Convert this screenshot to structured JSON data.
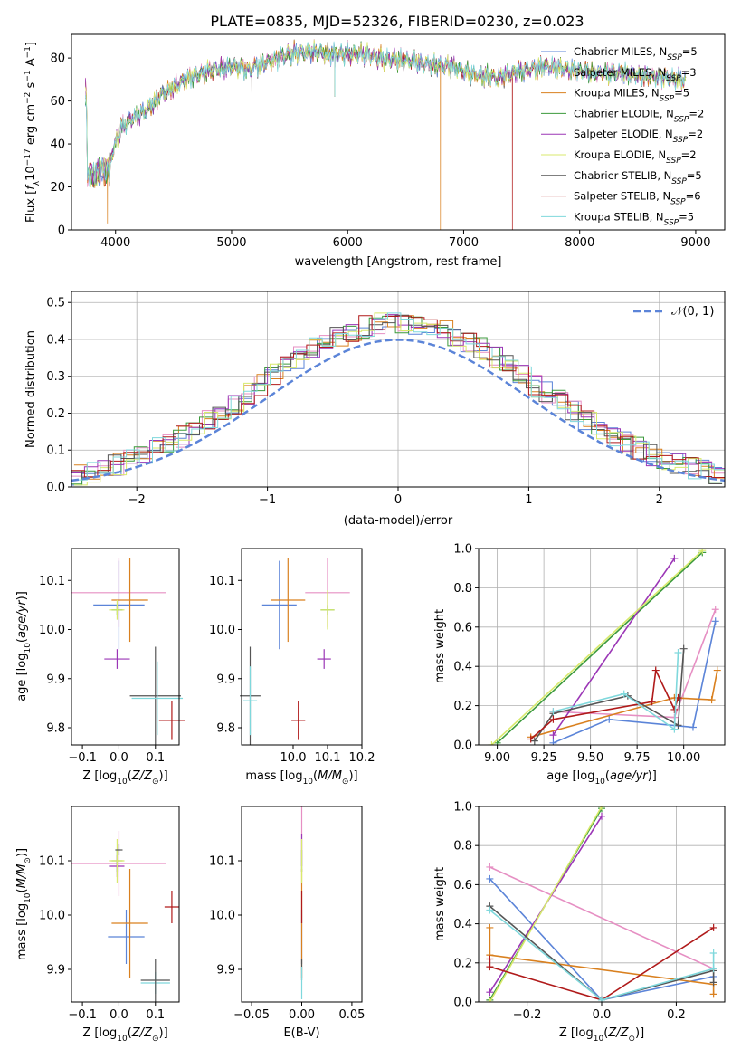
{
  "figure_title": "PLATE=0835, MJD=52326, FIBERID=0230, z=0.023",
  "colors": {
    "Chabrier MILES": "#5b84d8",
    "Salpeter MILES": "#e68fc3",
    "Kroupa MILES": "#d9801f",
    "Chabrier ELODIE": "#3c9a3c",
    "Salpeter ELODIE": "#9b36b6",
    "Kroupa ELODIE": "#d8ea6c",
    "Chabrier STELIB": "#555555",
    "Salpeter STELIB": "#b01a1a",
    "Kroupa STELIB": "#7fd8dc"
  },
  "chart_data": [
    {
      "id": "spectrum",
      "type": "line",
      "xlabel": "wavelength [Angstrom, rest frame]",
      "ylabel": "Flux [f_λ10^-17 erg cm^-2 s^-1 A^-1]",
      "xlim": [
        3620,
        9250
      ],
      "ylim": [
        0,
        91
      ],
      "xticks": [
        4000,
        5000,
        6000,
        7000,
        8000,
        9000
      ],
      "yticks": [
        0,
        20,
        40,
        60,
        80
      ],
      "legend_position": "upper right",
      "legend": [
        {
          "model": "Chabrier MILES",
          "label": "Chabrier MILES, N",
          "sub": "SSP",
          "eq": "=5"
        },
        {
          "model": "Salpeter MILES",
          "label": "Salpeter MILES, N",
          "sub": "SSP",
          "eq": "=3"
        },
        {
          "model": "Kroupa MILES",
          "label": "Kroupa MILES, N",
          "sub": "SSP",
          "eq": "=5"
        },
        {
          "model": "Chabrier ELODIE",
          "label": "Chabrier ELODIE, N",
          "sub": "SSP",
          "eq": "=2"
        },
        {
          "model": "Salpeter ELODIE",
          "label": "Salpeter ELODIE, N",
          "sub": "SSP",
          "eq": "=2"
        },
        {
          "model": "Kroupa ELODIE",
          "label": "Kroupa ELODIE, N",
          "sub": "SSP",
          "eq": "=2"
        },
        {
          "model": "Chabrier STELIB",
          "label": "Chabrier STELIB, N",
          "sub": "SSP",
          "eq": "=5"
        },
        {
          "model": "Salpeter STELIB",
          "label": "Salpeter STELIB, N",
          "sub": "SSP",
          "eq": "=6"
        },
        {
          "model": "Kroupa STELIB",
          "label": "Kroupa STELIB, N",
          "sub": "SSP",
          "eq": "=5"
        }
      ],
      "continuum": {
        "x": [
          3750,
          3850,
          3950,
          4050,
          4150,
          4250,
          4400,
          4600,
          4800,
          5000,
          5150,
          5300,
          5500,
          5700,
          5900,
          6100,
          6300,
          6500,
          6700,
          6900,
          7100,
          7300,
          7500,
          7700,
          7900,
          8100,
          8300,
          8500,
          8700,
          8900
        ],
        "y": [
          30,
          33,
          33,
          48,
          52,
          55,
          63,
          70,
          74,
          76,
          75,
          78,
          82,
          83,
          82,
          82,
          80,
          79,
          77,
          76,
          72,
          71,
          74,
          76,
          75,
          73,
          73,
          72,
          71,
          70
        ]
      },
      "dips": [
        {
          "x": 3930,
          "y": 3
        },
        {
          "x": 5175,
          "y": 52
        },
        {
          "x": 5890,
          "y": 62
        },
        {
          "x": 6800,
          "y": 0
        },
        {
          "x": 7420,
          "y": 0
        }
      ]
    },
    {
      "id": "residuals",
      "type": "histogram",
      "xlabel": "(data-model)/error",
      "ylabel": "Normed distribution",
      "xlim": [
        -2.5,
        2.5
      ],
      "ylim": [
        0,
        0.53
      ],
      "xticks": [
        -2,
        -1,
        0,
        1,
        2
      ],
      "yticks": [
        0.0,
        0.1,
        0.2,
        0.3,
        0.4,
        0.5
      ],
      "grid": true,
      "bin_edges_start": -2.5,
      "bin_width": 0.1,
      "reference_curve": "N(0,1)",
      "legend": "𝒩(0, 1)"
    },
    {
      "id": "age-vs-Z",
      "type": "errorbar",
      "xlabel": "Z [log₁₀(Z/Z⊙)]",
      "ylabel": "age  [log₁₀(age/yr)]",
      "xlim": [
        -0.13,
        0.165
      ],
      "ylim": [
        9.765,
        10.165
      ],
      "xticks": [
        -0.1,
        0.0,
        0.1
      ],
      "yticks": [
        9.8,
        9.9,
        10.0,
        10.1
      ],
      "points": [
        {
          "model": "Chabrier MILES",
          "x": 0.0,
          "xerr": 0.07,
          "y": 10.05,
          "yerr": 0.09
        },
        {
          "model": "Salpeter MILES",
          "x": 0.0,
          "xerr": 0.13,
          "y": 10.075,
          "yerr": 0.07
        },
        {
          "model": "Kroupa MILES",
          "x": 0.03,
          "xerr": 0.05,
          "y": 10.06,
          "yerr": 0.085
        },
        {
          "model": "Chabrier ELODIE",
          "x": -0.005,
          "xerr": 0.015,
          "y": 10.04,
          "yerr": 0.01
        },
        {
          "model": "Salpeter ELODIE",
          "x": -0.005,
          "xerr": 0.035,
          "y": 9.94,
          "yerr": 0.02
        },
        {
          "model": "Kroupa ELODIE",
          "x": -0.005,
          "xerr": 0.02,
          "y": 10.04,
          "yerr": 0.02
        },
        {
          "model": "Chabrier STELIB",
          "x": 0.1,
          "xerr": 0.07,
          "y": 9.865,
          "yerr": 0.1
        },
        {
          "model": "Salpeter STELIB",
          "x": 0.145,
          "xerr": 0.035,
          "y": 9.815,
          "yerr": 0.04
        },
        {
          "model": "Kroupa STELIB",
          "x": 0.105,
          "xerr": 0.07,
          "y": 9.86,
          "yerr": 0.075
        }
      ]
    },
    {
      "id": "age-vs-mass",
      "type": "errorbar",
      "xlabel": "mass [log₁₀(M/M⊙)]",
      "xlim": [
        9.85,
        10.2
      ],
      "ylim": [
        9.765,
        10.165
      ],
      "xticks": [
        10.0,
        10.1,
        10.2
      ],
      "yticks": [
        9.8,
        9.9,
        10.0,
        10.1
      ],
      "points": [
        {
          "model": "Chabrier MILES",
          "x": 9.96,
          "xerr": 0.05,
          "y": 10.05,
          "yerr": 0.09
        },
        {
          "model": "Salpeter MILES",
          "x": 10.1,
          "xerr": 0.065,
          "y": 10.075,
          "yerr": 0.07
        },
        {
          "model": "Kroupa MILES",
          "x": 9.985,
          "xerr": 0.05,
          "y": 10.06,
          "yerr": 0.085
        },
        {
          "model": "Chabrier ELODIE",
          "x": 10.1,
          "xerr": 0.02,
          "y": 10.04,
          "yerr": 0.01
        },
        {
          "model": "Salpeter ELODIE",
          "x": 10.09,
          "xerr": 0.02,
          "y": 9.94,
          "yerr": 0.02
        },
        {
          "model": "Kroupa ELODIE",
          "x": 10.1,
          "xerr": 0.02,
          "y": 10.04,
          "yerr": 0.04
        },
        {
          "model": "Chabrier STELIB",
          "x": 9.875,
          "xerr": 0.03,
          "y": 9.865,
          "yerr": 0.1
        },
        {
          "model": "Salpeter STELIB",
          "x": 10.015,
          "xerr": 0.02,
          "y": 9.815,
          "yerr": 0.04
        },
        {
          "model": "Kroupa STELIB",
          "x": 9.875,
          "xerr": 0.02,
          "y": 9.855,
          "yerr": 0.07
        }
      ]
    },
    {
      "id": "weight-vs-age",
      "type": "line",
      "xlabel": "age  [log₁₀(age/yr)]",
      "ylabel": "mass weight",
      "xlim": [
        8.9,
        10.22
      ],
      "ylim": [
        0,
        1
      ],
      "xticks": [
        9.0,
        9.25,
        9.5,
        9.75,
        10.0
      ],
      "yticks": [
        0.0,
        0.2,
        0.4,
        0.6,
        0.8,
        1.0
      ],
      "grid": true,
      "series": [
        {
          "model": "Chabrier MILES",
          "x": [
            9.3,
            9.6,
            10.05,
            10.17
          ],
          "y": [
            0.01,
            0.13,
            0.09,
            0.63
          ]
        },
        {
          "model": "Salpeter MILES",
          "x": [
            9.3,
            9.95,
            10.17
          ],
          "y": [
            0.17,
            0.14,
            0.69
          ]
        },
        {
          "model": "Kroupa MILES",
          "x": [
            9.18,
            9.95,
            10.15,
            10.18
          ],
          "y": [
            0.04,
            0.24,
            0.23,
            0.38
          ]
        },
        {
          "model": "Chabrier ELODIE",
          "x": [
            9.0,
            10.1
          ],
          "y": [
            0.01,
            0.98
          ]
        },
        {
          "model": "Salpeter ELODIE",
          "x": [
            9.3,
            9.95
          ],
          "y": [
            0.05,
            0.95
          ]
        },
        {
          "model": "Kroupa ELODIE",
          "x": [
            8.97,
            10.1
          ],
          "y": [
            0.0,
            0.99
          ]
        },
        {
          "model": "Chabrier STELIB",
          "x": [
            9.2,
            9.3,
            9.7,
            9.97,
            10.0
          ],
          "y": [
            0.02,
            0.16,
            0.25,
            0.1,
            0.49
          ]
        },
        {
          "model": "Salpeter STELIB",
          "x": [
            9.18,
            9.3,
            9.83,
            9.85,
            9.95,
            9.97
          ],
          "y": [
            0.03,
            0.13,
            0.22,
            0.38,
            0.18,
            0.24
          ]
        },
        {
          "model": "Kroupa STELIB",
          "x": [
            9.3,
            9.68,
            9.95,
            9.97
          ],
          "y": [
            0.17,
            0.26,
            0.08,
            0.47
          ]
        }
      ]
    },
    {
      "id": "mass-vs-Z",
      "type": "errorbar",
      "xlabel": "Z [log₁₀(Z/Z⊙)]",
      "ylabel": "mass [log₁₀(M/M⊙)]",
      "xlim": [
        -0.13,
        0.165
      ],
      "ylim": [
        9.84,
        10.2
      ],
      "xticks": [
        -0.1,
        0.0,
        0.1
      ],
      "yticks": [
        9.9,
        10.0,
        10.1
      ],
      "points": [
        {
          "model": "Chabrier MILES",
          "x": 0.02,
          "xerr": 0.05,
          "y": 9.96,
          "yerr": 0.05
        },
        {
          "model": "Salpeter MILES",
          "x": 0.0,
          "xerr": 0.13,
          "y": 10.095,
          "yerr": 0.06
        },
        {
          "model": "Kroupa MILES",
          "x": 0.03,
          "xerr": 0.05,
          "y": 9.985,
          "yerr": 0.1
        },
        {
          "model": "Chabrier ELODIE",
          "x": -0.005,
          "xerr": 0.015,
          "y": 10.1,
          "yerr": 0.02
        },
        {
          "model": "Salpeter ELODIE",
          "x": -0.005,
          "xerr": 0.02,
          "y": 10.09,
          "yerr": 0.02
        },
        {
          "model": "Kroupa ELODIE",
          "x": -0.005,
          "xerr": 0.02,
          "y": 10.1,
          "yerr": 0.04
        },
        {
          "model": "Chabrier STELIB",
          "x": 0.0,
          "xerr": 0.01,
          "y": 10.12,
          "yerr": 0.01
        },
        {
          "model": "Salpeter STELIB",
          "x": 0.145,
          "xerr": 0.02,
          "y": 10.015,
          "yerr": 0.03
        },
        {
          "model": "Kroupa STELIB",
          "x": 0.1,
          "xerr": 0.04,
          "y": 9.875,
          "yerr": 0.02
        },
        {
          "model": "Chabrier STELIB",
          "x": 0.1,
          "xerr": 0.04,
          "y": 9.88,
          "yerr": 0.04
        }
      ]
    },
    {
      "id": "mass-vs-ebv",
      "type": "errorbar",
      "xlabel": "E(B-V)",
      "xlim": [
        -0.06,
        0.06
      ],
      "ylim": [
        9.84,
        10.2
      ],
      "xticks": [
        -0.05,
        0.0,
        0.05
      ],
      "yticks": [
        9.9,
        10.0,
        10.1
      ],
      "points": [
        {
          "model": "Chabrier MILES",
          "x": 0.0,
          "xerr": 0,
          "y": 9.96,
          "yerr": 0.05
        },
        {
          "model": "Salpeter MILES",
          "x": 0.0,
          "xerr": 0,
          "y": 10.14,
          "yerr": 0.06
        },
        {
          "model": "Kroupa MILES",
          "x": 0.0,
          "xerr": 0,
          "y": 9.985,
          "yerr": 0.1
        },
        {
          "model": "Chabrier ELODIE",
          "x": 0.0,
          "xerr": 0,
          "y": 10.1,
          "yerr": 0.02
        },
        {
          "model": "Salpeter ELODIE",
          "x": 0.0,
          "xerr": 0,
          "y": 10.12,
          "yerr": 0.03
        },
        {
          "model": "Kroupa ELODIE",
          "x": 0.0,
          "xerr": 0,
          "y": 10.1,
          "yerr": 0.04
        },
        {
          "model": "Chabrier STELIB",
          "x": 0.0,
          "xerr": 0,
          "y": 9.9,
          "yerr": 0.02
        },
        {
          "model": "Salpeter STELIB",
          "x": 0.0,
          "xerr": 0,
          "y": 10.015,
          "yerr": 0.03
        },
        {
          "model": "Kroupa STELIB",
          "x": 0.0,
          "xerr": 0,
          "y": 9.875,
          "yerr": 0.03
        }
      ]
    },
    {
      "id": "weight-vs-Z",
      "type": "line",
      "xlabel": "Z [log₁₀(Z/Z⊙)]",
      "ylabel": "mass weight",
      "xlim": [
        -0.33,
        0.33
      ],
      "ylim": [
        0,
        1
      ],
      "xticks": [
        -0.2,
        0.0,
        0.2
      ],
      "yticks": [
        0.0,
        0.2,
        0.4,
        0.6,
        0.8,
        1.0
      ],
      "grid": true,
      "series": [
        {
          "model": "Chabrier MILES",
          "x": [
            -0.3,
            0.0,
            0.3
          ],
          "y": [
            0.63,
            0.01,
            0.13
          ]
        },
        {
          "model": "Salpeter MILES",
          "x": [
            -0.3,
            0.3
          ],
          "y": [
            0.69,
            0.17
          ]
        },
        {
          "model": "Kroupa MILES",
          "x": [
            -0.3,
            -0.3,
            0.3,
            0.3
          ],
          "y": [
            0.38,
            0.24,
            0.09,
            0.04
          ]
        },
        {
          "model": "Chabrier ELODIE",
          "x": [
            -0.3,
            0.0
          ],
          "y": [
            0.01,
            0.99
          ]
        },
        {
          "model": "Salpeter ELODIE",
          "x": [
            -0.3,
            0.0
          ],
          "y": [
            0.05,
            0.95
          ]
        },
        {
          "model": "Kroupa ELODIE",
          "x": [
            -0.3,
            0.0
          ],
          "y": [
            0.0,
            1.0
          ]
        },
        {
          "model": "Chabrier STELIB",
          "x": [
            -0.3,
            0.0,
            0.3,
            0.3
          ],
          "y": [
            0.49,
            0.01,
            0.16,
            0.1
          ]
        },
        {
          "model": "Salpeter STELIB",
          "x": [
            -0.3,
            -0.3,
            0.0,
            0.3
          ],
          "y": [
            0.22,
            0.18,
            0.01,
            0.38
          ]
        },
        {
          "model": "Kroupa STELIB",
          "x": [
            -0.3,
            0.0,
            0.3,
            0.3
          ],
          "y": [
            0.47,
            0.01,
            0.17,
            0.25
          ]
        }
      ]
    }
  ]
}
